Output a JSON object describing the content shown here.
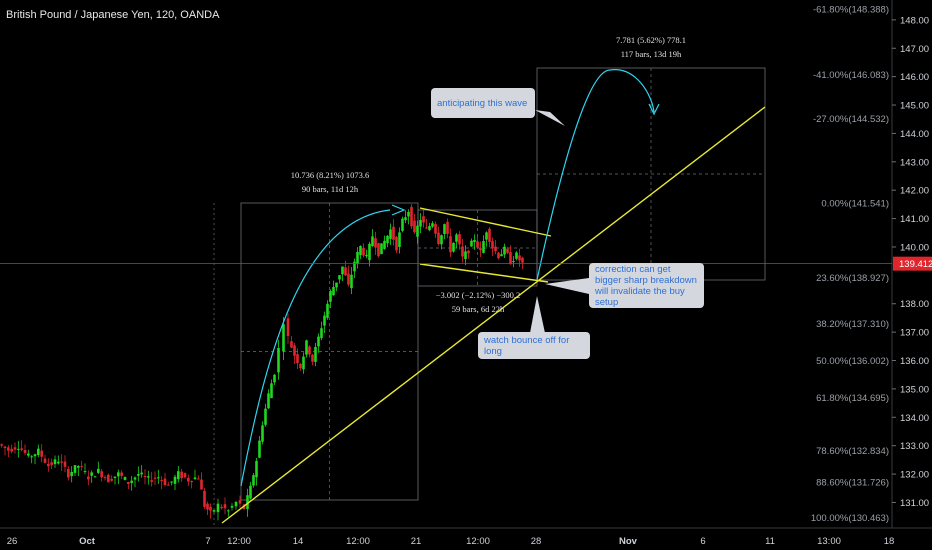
{
  "header": {
    "title": "British Pound / Japanese Yen, 120, OANDA"
  },
  "colors": {
    "up": "#1fd81f",
    "down": "#e0262d",
    "fib": "#9aa0a6",
    "trend": "#e8e833",
    "arrow": "#2fd4f0",
    "last_price": "#e0262d",
    "grid_text": "#cfd3d8"
  },
  "chart_data": {
    "type": "candlestick",
    "title": "British Pound / Japanese Yen, 120, OANDA",
    "x_ticks": [
      "26",
      "Oct",
      "7",
      "12:00",
      "14",
      "12:00",
      "21",
      "12:00",
      "28",
      "Nov",
      "6",
      "11",
      "13:00",
      "18"
    ],
    "y_ticks": [
      131.0,
      132.0,
      133.0,
      134.0,
      135.0,
      136.0,
      137.0,
      138.0,
      140.0,
      141.0,
      142.0,
      143.0,
      144.0,
      145.0,
      146.0,
      147.0,
      148.0
    ],
    "ylim": [
      130.1,
      148.7
    ],
    "last_price": "139.412",
    "fib_levels": [
      {
        "label": "-61.80%(148.388)",
        "price": 148.388
      },
      {
        "label": "-41.00%(146.083)",
        "price": 146.083
      },
      {
        "label": "-27.00%(144.532)",
        "price": 144.532
      },
      {
        "label": "0.00%(141.541)",
        "price": 141.541
      },
      {
        "label": "23.60%(138.927)",
        "price": 138.927
      },
      {
        "label": "38.20%(137.310)",
        "price": 137.31
      },
      {
        "label": "50.00%(136.002)",
        "price": 136.002
      },
      {
        "label": "61.80%(134.695)",
        "price": 134.695
      },
      {
        "label": "78.60%(132.834)",
        "price": 132.834
      },
      {
        "label": "88.60%(131.726)",
        "price": 131.726
      },
      {
        "label": "100.00%(130.463)",
        "price": 130.463
      }
    ],
    "measurements": [
      {
        "line1": "10.736 (8.21%) 1073.6",
        "line2": "90 bars, 11d 12h"
      },
      {
        "line1": "7.781 (5.62%) 778.1",
        "line2": "117 bars, 13d 19h"
      },
      {
        "line1": "−3.002 (−2.12%) −300.2",
        "line2": "59 bars, 6d 22h"
      }
    ],
    "price_path": [
      [
        0,
        133.05
      ],
      [
        10,
        132.85
      ],
      [
        20,
        133.0
      ],
      [
        30,
        132.6
      ],
      [
        40,
        132.8
      ],
      [
        50,
        132.3
      ],
      [
        60,
        132.5
      ],
      [
        70,
        132.0
      ],
      [
        80,
        132.3
      ],
      [
        90,
        131.9
      ],
      [
        100,
        132.1
      ],
      [
        110,
        131.8
      ],
      [
        120,
        132.0
      ],
      [
        130,
        131.7
      ],
      [
        140,
        132.0
      ],
      [
        150,
        131.8
      ],
      [
        160,
        131.9
      ],
      [
        170,
        131.6
      ],
      [
        180,
        132.0
      ],
      [
        190,
        131.8
      ],
      [
        200,
        131.9
      ],
      [
        206,
        130.9
      ],
      [
        212,
        130.6
      ],
      [
        220,
        130.9
      ],
      [
        230,
        130.7
      ],
      [
        238,
        131.0
      ],
      [
        246,
        130.8
      ],
      [
        252,
        131.5
      ],
      [
        258,
        132.5
      ],
      [
        264,
        133.8
      ],
      [
        270,
        134.8
      ],
      [
        276,
        135.6
      ],
      [
        281,
        136.4
      ],
      [
        286,
        137.4
      ],
      [
        290,
        136.8
      ],
      [
        296,
        136.2
      ],
      [
        302,
        135.8
      ],
      [
        308,
        136.6
      ],
      [
        314,
        136.0
      ],
      [
        320,
        136.8
      ],
      [
        326,
        137.6
      ],
      [
        332,
        138.4
      ],
      [
        338,
        138.8
      ],
      [
        344,
        139.3
      ],
      [
        350,
        138.6
      ],
      [
        356,
        139.5
      ],
      [
        362,
        140.0
      ],
      [
        368,
        139.6
      ],
      [
        374,
        140.4
      ],
      [
        380,
        139.8
      ],
      [
        386,
        140.2
      ],
      [
        392,
        140.6
      ],
      [
        398,
        140.0
      ],
      [
        404,
        140.9
      ],
      [
        410,
        141.3
      ],
      [
        416,
        140.4
      ],
      [
        422,
        141.0
      ],
      [
        428,
        140.6
      ],
      [
        434,
        140.9
      ],
      [
        440,
        140.2
      ],
      [
        446,
        140.8
      ],
      [
        452,
        139.9
      ],
      [
        458,
        140.4
      ],
      [
        464,
        139.6
      ],
      [
        470,
        139.9
      ],
      [
        476,
        140.3
      ],
      [
        482,
        139.8
      ],
      [
        488,
        140.6
      ],
      [
        494,
        140.0
      ],
      [
        500,
        139.7
      ],
      [
        506,
        139.9
      ],
      [
        512,
        139.5
      ],
      [
        518,
        139.7
      ],
      [
        524,
        139.4
      ]
    ]
  },
  "annotations": {
    "anticipating": "anticipating this wave",
    "correction": "correction can get bigger sharp breakdown will invalidate the buy setup",
    "bounce": "watch bounce off for long"
  }
}
